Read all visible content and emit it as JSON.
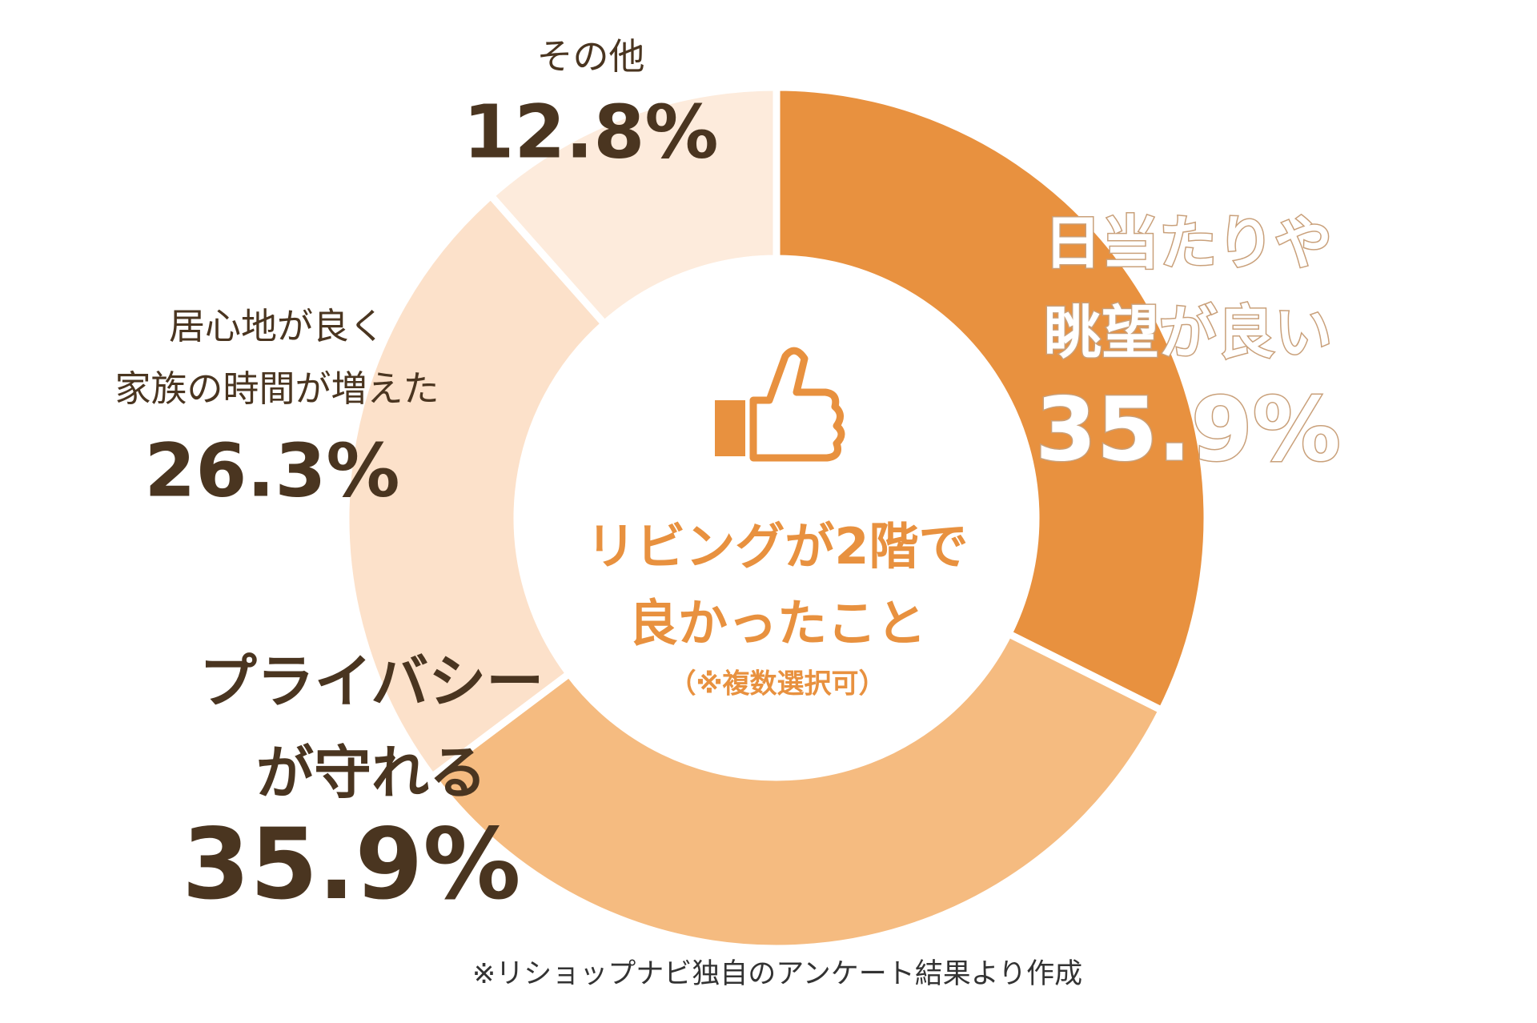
{
  "chart_data": {
    "type": "donut",
    "title": [
      "リビングが2階で",
      "良かったこと"
    ],
    "subtitle": "（※複数選択可）",
    "categories": [
      [
        "日当たりや",
        "眺望が良い"
      ],
      [
        "プライバシー",
        "が守れる"
      ],
      [
        "居心地が良く",
        "家族の時間が増えた"
      ],
      [
        "その他"
      ]
    ],
    "values": [
      35.9,
      35.9,
      26.3,
      12.8
    ],
    "value_labels": [
      "35.9%",
      "35.9%",
      "26.3%",
      "12.8%"
    ],
    "colors": [
      "#e8913f",
      "#f5bb80",
      "#fce1ca",
      "#fdebdc"
    ],
    "note": "※リショップナビ独自のアンケート結果より作成"
  }
}
